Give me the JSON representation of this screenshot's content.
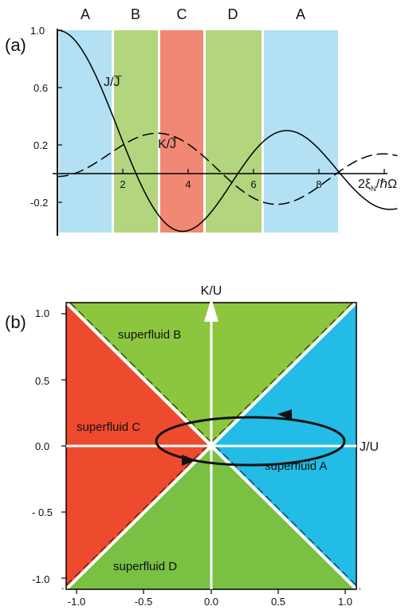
{
  "panel_a": {
    "label": "(a)",
    "region_labels": [
      "A",
      "B",
      "C",
      "D",
      "A"
    ],
    "x_ticks": [
      "2",
      "4",
      "6",
      "8"
    ],
    "y_ticks": [
      "1.0",
      "0.6",
      "0.2",
      "-0.2"
    ],
    "x_axis_label": "2ξ",
    "x_axis_label_sub": "N",
    "x_axis_label_tail": "/ℏΩ",
    "curve_J_label": "J/J̅",
    "curve_K_label": "K/J̅",
    "colors": {
      "A": "#b3e0f2",
      "B": "#b3d57e",
      "C": "#f08873",
      "D": "#b3d57e"
    }
  },
  "panel_b": {
    "label": "(b)",
    "y_axis_title": "K/U",
    "x_axis_title": "J/U",
    "x_ticks": [
      "-1.0",
      "-0.5",
      "0.0",
      "0.5",
      "1.0"
    ],
    "y_ticks": [
      "1.0",
      "0.5",
      "0.0",
      "- 0.5",
      "-1.0"
    ],
    "phases": {
      "top": "superfluid B",
      "left": "superfluid C",
      "right": "superfluid A",
      "bottom": "superfluid D"
    },
    "colors": {
      "A": "#22bce6",
      "B": "#8cc63f",
      "C": "#ee4a2e",
      "D": "#79c043"
    }
  }
}
